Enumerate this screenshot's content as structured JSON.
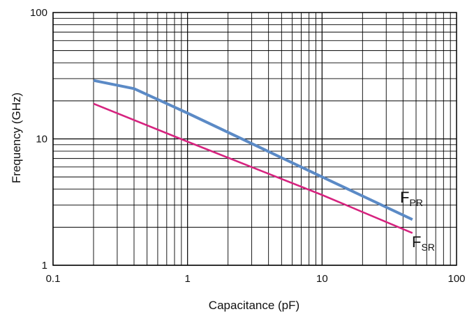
{
  "chart_data": {
    "type": "line",
    "xscale": "log",
    "yscale": "log",
    "xlim": [
      0.1,
      100
    ],
    "ylim": [
      1,
      100
    ],
    "xlabel": "Capacitance (pF)",
    "ylabel": "Frequency (GHz)",
    "x_tick_labels": [
      "0.1",
      "1",
      "10",
      "100"
    ],
    "y_tick_labels": [
      "1",
      "10",
      "100"
    ],
    "grid": true,
    "series": [
      {
        "name_main": "F",
        "name_sub": "PR",
        "color": "#5b8ac6",
        "x": [
          0.2,
          0.4,
          1,
          10,
          47
        ],
        "y": [
          29,
          25,
          16,
          5,
          2.3
        ]
      },
      {
        "name_main": "F",
        "name_sub": "SR",
        "color": "#d6237f",
        "x": [
          0.2,
          1,
          10,
          47
        ],
        "y": [
          19,
          9.5,
          3.6,
          1.8
        ]
      }
    ]
  }
}
